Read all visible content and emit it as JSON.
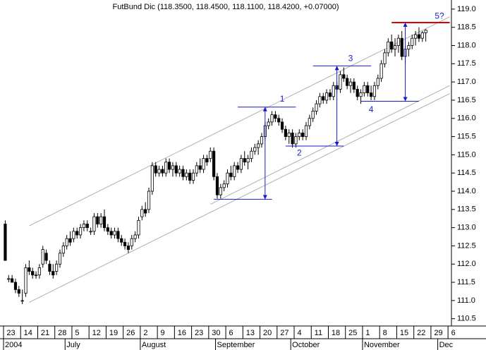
{
  "chart_data": {
    "type": "candlestick",
    "title": "FutBund Dic (118.3500, 118.4500, 118.1100, 118.4200, +0.07000)",
    "color": "#000000",
    "up_color": "#ffffff",
    "down_color": "#000000",
    "ylim": [
      110.3,
      119.25
    ],
    "yticks": [
      110.5,
      {
        "value": 111,
        "label": "111.0"
      },
      111.5,
      {
        "value": 112,
        "label": "112.0"
      },
      112.5,
      {
        "value": 113,
        "label": "113.0"
      },
      113.5,
      {
        "value": 114,
        "label": "114.0"
      },
      114.5,
      {
        "value": 115,
        "label": "115.0"
      },
      115.5,
      {
        "value": 116,
        "label": "116.0"
      },
      116.5,
      {
        "value": 117,
        "label": "117.0"
      },
      117.5,
      {
        "value": 118,
        "label": "118.0"
      },
      118.5,
      {
        "value": 119,
        "label": "119.0"
      }
    ],
    "categories": [
      "23",
      null,
      null,
      null,
      null,
      "14",
      null,
      null,
      null,
      null,
      "21",
      null,
      null,
      null,
      null,
      "28",
      null,
      null,
      null,
      null,
      "5",
      null,
      null,
      null,
      null,
      "12",
      null,
      null,
      null,
      null,
      "19",
      null,
      null,
      null,
      null,
      "26",
      null,
      null,
      null,
      null,
      "2",
      null,
      null,
      null,
      null,
      "9",
      null,
      null,
      null,
      null,
      "16",
      null,
      null,
      null,
      null,
      "23",
      null,
      null,
      null,
      null,
      "30",
      null,
      null,
      null,
      null,
      "6",
      null,
      null,
      null,
      null,
      "13",
      null,
      null,
      null,
      null,
      "20",
      null,
      null,
      null,
      null,
      "27",
      null,
      null,
      null,
      null,
      "4",
      null,
      null,
      null,
      null,
      "11",
      null,
      null,
      null,
      null,
      "18",
      null,
      null,
      null,
      null,
      "25",
      null,
      null,
      null,
      null,
      "1",
      null,
      null,
      null,
      null,
      "8",
      null,
      null,
      null,
      null,
      "15",
      null,
      null,
      null,
      null,
      "22",
      null,
      null,
      null,
      null,
      "29",
      null,
      null,
      null,
      null,
      "6"
    ],
    "month_categories": [
      "2004",
      null,
      null,
      null,
      null,
      null,
      null,
      null,
      null,
      null,
      null,
      null,
      null,
      null,
      null,
      null,
      null,
      null,
      "July",
      null,
      null,
      null,
      null,
      null,
      null,
      null,
      null,
      null,
      null,
      null,
      null,
      null,
      null,
      null,
      null,
      null,
      null,
      null,
      null,
      null,
      "August",
      null,
      null,
      null,
      null,
      null,
      null,
      null,
      null,
      null,
      null,
      null,
      null,
      null,
      null,
      null,
      null,
      null,
      null,
      null,
      null,
      null,
      "September",
      null,
      null,
      null,
      null,
      null,
      null,
      null,
      null,
      null,
      null,
      null,
      null,
      null,
      null,
      null,
      null,
      null,
      null,
      null,
      null,
      null,
      "October",
      null,
      null,
      null,
      null,
      null,
      null,
      null,
      null,
      null,
      null,
      null,
      null,
      null,
      null,
      null,
      null,
      null,
      null,
      null,
      null,
      "November",
      null,
      null,
      null,
      null,
      null,
      null,
      null,
      null,
      null,
      null,
      null,
      null,
      null,
      null,
      null,
      null,
      null,
      null,
      null,
      null,
      null,
      "Dec",
      null,
      null,
      null
    ],
    "ohlc": [
      [
        113.1,
        113.2,
        112.1,
        112.1
      ],
      [
        111.6,
        111.7,
        111.5,
        111.6
      ],
      [
        111.6,
        111.7,
        111.5,
        111.5
      ],
      [
        111.5,
        111.6,
        111.2,
        111.3
      ],
      [
        111.3,
        111.4,
        111.1,
        111.2
      ],
      [
        111.0,
        111.3,
        110.9,
        111.0
      ],
      [
        111.2,
        112.0,
        111.1,
        111.9
      ],
      [
        111.9,
        112.1,
        111.7,
        111.8
      ],
      [
        111.8,
        111.9,
        111.6,
        111.7
      ],
      [
        111.7,
        111.8,
        111.6,
        111.7
      ],
      [
        111.7,
        112.0,
        111.6,
        111.9
      ],
      [
        112.0,
        112.5,
        111.9,
        112.4
      ],
      [
        112.3,
        112.4,
        112.0,
        112.1
      ],
      [
        112.0,
        112.1,
        111.7,
        111.8
      ],
      [
        111.8,
        112.0,
        111.6,
        111.7
      ],
      [
        111.8,
        112.1,
        111.7,
        112.0
      ],
      [
        112.0,
        112.4,
        111.9,
        112.3
      ],
      [
        112.3,
        112.6,
        112.2,
        112.5
      ],
      [
        112.5,
        112.8,
        112.4,
        112.7
      ],
      [
        112.7,
        112.9,
        112.5,
        112.6
      ],
      [
        112.7,
        113.0,
        112.6,
        112.9
      ],
      [
        112.9,
        113.0,
        112.7,
        112.8
      ],
      [
        112.8,
        113.1,
        112.7,
        113.0
      ],
      [
        113.0,
        113.2,
        112.9,
        113.1
      ],
      [
        113.1,
        113.2,
        112.9,
        113.0
      ],
      [
        112.9,
        113.0,
        112.8,
        112.9
      ],
      [
        112.9,
        113.4,
        112.8,
        113.3
      ],
      [
        113.3,
        113.4,
        113.0,
        113.1
      ],
      [
        113.1,
        113.4,
        113.0,
        113.3
      ],
      [
        113.3,
        113.5,
        112.9,
        113.0
      ],
      [
        113.0,
        113.1,
        112.8,
        112.9
      ],
      [
        112.9,
        113.0,
        112.7,
        112.8
      ],
      [
        112.8,
        113.0,
        112.7,
        112.9
      ],
      [
        112.9,
        113.0,
        112.6,
        112.7
      ],
      [
        112.7,
        112.8,
        112.5,
        112.6
      ],
      [
        112.6,
        112.7,
        112.4,
        112.5
      ],
      [
        112.5,
        112.6,
        112.3,
        112.4
      ],
      [
        112.5,
        112.8,
        112.4,
        112.7
      ],
      [
        112.7,
        112.9,
        112.6,
        112.8
      ],
      [
        112.8,
        113.3,
        112.7,
        113.2
      ],
      [
        113.3,
        113.6,
        113.2,
        113.5
      ],
      [
        113.5,
        113.7,
        113.3,
        113.4
      ],
      [
        113.5,
        114.1,
        113.4,
        114.0
      ],
      [
        114.0,
        114.8,
        113.9,
        114.7
      ],
      [
        114.7,
        114.8,
        114.4,
        114.5
      ],
      [
        114.5,
        114.7,
        114.4,
        114.6
      ],
      [
        114.6,
        114.7,
        114.4,
        114.5
      ],
      [
        114.5,
        114.9,
        114.4,
        114.8
      ],
      [
        114.8,
        114.9,
        114.5,
        114.6
      ],
      [
        114.6,
        114.8,
        114.4,
        114.7
      ],
      [
        114.7,
        114.8,
        114.4,
        114.5
      ],
      [
        114.5,
        114.7,
        114.4,
        114.6
      ],
      [
        114.6,
        114.7,
        114.3,
        114.4
      ],
      [
        114.4,
        114.6,
        114.3,
        114.5
      ],
      [
        114.5,
        114.6,
        114.2,
        114.3
      ],
      [
        114.3,
        114.6,
        114.2,
        114.5
      ],
      [
        114.5,
        114.8,
        114.4,
        114.7
      ],
      [
        114.7,
        114.9,
        114.5,
        114.6
      ],
      [
        114.6,
        115.0,
        114.5,
        114.9
      ],
      [
        114.9,
        115.0,
        114.7,
        114.8
      ],
      [
        114.9,
        115.2,
        114.8,
        115.1
      ],
      [
        115.1,
        115.2,
        114.3,
        114.4
      ],
      [
        114.4,
        114.5,
        113.8,
        113.9
      ],
      [
        113.9,
        114.2,
        113.8,
        114.1
      ],
      [
        114.1,
        114.3,
        114.0,
        114.2
      ],
      [
        114.2,
        114.6,
        114.1,
        114.5
      ],
      [
        114.5,
        114.7,
        114.3,
        114.4
      ],
      [
        114.4,
        114.8,
        114.3,
        114.7
      ],
      [
        114.7,
        114.8,
        114.5,
        114.6
      ],
      [
        114.6,
        115.0,
        114.5,
        114.9
      ],
      [
        114.9,
        115.1,
        114.7,
        114.8
      ],
      [
        114.8,
        115.0,
        114.6,
        114.9
      ],
      [
        114.9,
        115.2,
        114.8,
        115.1
      ],
      [
        115.1,
        115.3,
        115.0,
        115.2
      ],
      [
        115.2,
        115.4,
        115.0,
        115.3
      ],
      [
        115.3,
        115.6,
        115.2,
        115.5
      ],
      [
        115.5,
        115.9,
        115.4,
        115.8
      ],
      [
        115.8,
        116.0,
        115.7,
        115.9
      ],
      [
        115.9,
        116.2,
        115.8,
        116.1
      ],
      [
        116.1,
        116.2,
        115.9,
        116.0
      ],
      [
        116.0,
        116.1,
        115.8,
        115.9
      ],
      [
        115.9,
        116.0,
        115.6,
        115.7
      ],
      [
        115.7,
        115.8,
        115.4,
        115.5
      ],
      [
        115.5,
        115.7,
        115.3,
        115.6
      ],
      [
        115.6,
        115.7,
        115.2,
        115.3
      ],
      [
        115.3,
        115.6,
        115.2,
        115.5
      ],
      [
        115.5,
        115.7,
        115.4,
        115.6
      ],
      [
        115.6,
        115.7,
        115.4,
        115.5
      ],
      [
        115.5,
        115.9,
        115.4,
        115.8
      ],
      [
        115.8,
        116.1,
        115.7,
        116.0
      ],
      [
        116.0,
        116.3,
        115.9,
        116.2
      ],
      [
        116.2,
        116.5,
        116.1,
        116.4
      ],
      [
        116.4,
        116.7,
        116.3,
        116.6
      ],
      [
        116.6,
        116.7,
        116.4,
        116.5
      ],
      [
        116.5,
        116.8,
        116.4,
        116.7
      ],
      [
        116.7,
        116.8,
        116.5,
        116.6
      ],
      [
        116.6,
        117.0,
        116.5,
        116.9
      ],
      [
        116.9,
        117.0,
        116.7,
        116.8
      ],
      [
        116.8,
        117.3,
        116.7,
        117.2
      ],
      [
        117.2,
        117.4,
        117.0,
        117.1
      ],
      [
        117.1,
        117.2,
        116.8,
        116.9
      ],
      [
        116.9,
        117.1,
        116.7,
        117.0
      ],
      [
        117.0,
        117.1,
        116.7,
        116.8
      ],
      [
        116.8,
        116.9,
        116.5,
        116.6
      ],
      [
        116.6,
        116.8,
        116.4,
        116.7
      ],
      [
        116.7,
        117.0,
        116.6,
        116.9
      ],
      [
        116.9,
        117.0,
        116.6,
        116.7
      ],
      [
        116.7,
        116.9,
        116.5,
        116.6
      ],
      [
        116.6,
        117.0,
        116.5,
        116.9
      ],
      [
        116.9,
        117.2,
        116.8,
        117.1
      ],
      [
        117.1,
        117.6,
        117.0,
        117.5
      ],
      [
        117.5,
        117.9,
        117.4,
        117.8
      ],
      [
        117.8,
        118.2,
        117.7,
        118.1
      ],
      [
        118.1,
        118.3,
        117.8,
        117.9
      ],
      [
        117.9,
        118.2,
        117.7,
        118.0
      ],
      [
        118.0,
        118.3,
        117.8,
        118.2
      ],
      [
        118.2,
        118.4,
        117.6,
        117.7
      ],
      [
        117.7,
        118.0,
        117.5,
        117.9
      ],
      [
        117.9,
        118.1,
        117.7,
        118.0
      ],
      [
        118.0,
        118.3,
        117.9,
        118.2
      ],
      [
        118.2,
        118.4,
        118.0,
        118.3
      ],
      [
        118.3,
        118.5,
        118.1,
        118.2
      ],
      [
        118.2,
        118.4,
        118.1,
        118.35
      ],
      [
        118.35,
        118.45,
        118.11,
        118.42
      ],
      null,
      null,
      null,
      null,
      null,
      null,
      null
    ],
    "annotation_color": "#1a1acc",
    "channel_color": "#b0b0b0",
    "channels": [
      {
        "from": [
          7,
          113.05
        ],
        "to": [
          130,
          118.79
        ]
      },
      {
        "from": [
          60,
          113.64
        ],
        "to": [
          130,
          116.9
        ]
      },
      {
        "from": [
          7,
          110.95
        ],
        "to": [
          130,
          116.68
        ]
      }
    ],
    "levels": [
      {
        "price": 116.31,
        "from": 68,
        "to": 85
      },
      {
        "price": 113.78,
        "from": 61,
        "to": 78
      },
      {
        "price": 115.24,
        "from": 82,
        "to": 99
      },
      {
        "price": 117.44,
        "from": 90,
        "to": 107
      },
      {
        "price": 116.47,
        "from": 104,
        "to": 121
      },
      {
        "price": 118.63,
        "from": 113,
        "to": 130,
        "color": "#e00000"
      }
    ],
    "arrows": [
      {
        "at": 76,
        "from": 113.78,
        "to": 116.31
      },
      {
        "at": 97,
        "from": 115.24,
        "to": 117.44
      },
      {
        "at": 117,
        "from": 116.47,
        "to": 118.63
      }
    ],
    "labels": [
      {
        "text": "1",
        "at": 81,
        "price": 116.52
      },
      {
        "text": "2",
        "at": 86,
        "price": 115.04
      },
      {
        "text": "3",
        "at": 101,
        "price": 117.64
      },
      {
        "text": "4",
        "at": 107,
        "price": 116.23
      },
      {
        "text": "5?",
        "at": 127,
        "price": 118.8
      }
    ]
  }
}
